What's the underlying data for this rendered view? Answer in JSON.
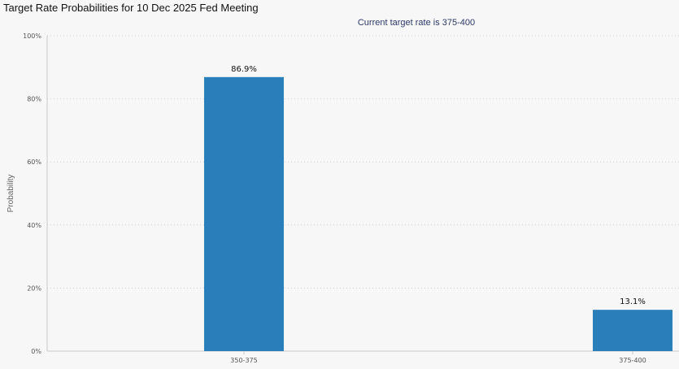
{
  "chart_data": {
    "type": "bar",
    "title": "Target Rate Probabilities for 10 Dec 2025 Fed Meeting",
    "subtitle": "Current target rate is 375-400",
    "xlabel": "",
    "ylabel": "Probability",
    "categories": [
      "350-375",
      "375-400"
    ],
    "values": [
      86.9,
      13.1
    ],
    "data_labels": [
      "86.9%",
      "13.1%"
    ],
    "ylim": [
      0,
      100
    ],
    "yticks": [
      "0%",
      "20%",
      "40%",
      "60%",
      "80%",
      "100%"
    ],
    "grid": true,
    "legend": "none",
    "bar_color": "#2a7fba"
  }
}
